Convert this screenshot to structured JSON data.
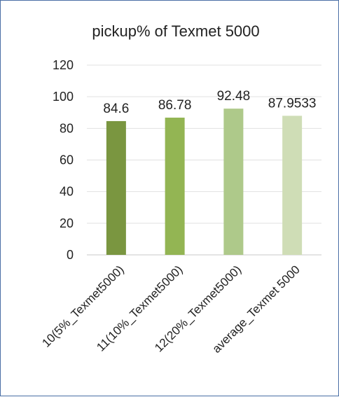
{
  "chart_data": {
    "type": "bar",
    "title": "pickup% of Texmet 5000",
    "categories": [
      "10(5%_Texmet5000)",
      "11(10%_Texmet5000)",
      "12(20%_Texmet5000)",
      "average_Texmet 5000"
    ],
    "values": [
      84.6,
      86.78,
      92.48,
      87.9533
    ],
    "data_labels": [
      "84.6",
      "86.78",
      "92.48",
      "87.9533"
    ],
    "bar_colors": [
      "#7a9640",
      "#93b553",
      "#aec98a",
      "#cfddb6"
    ],
    "ylim": [
      0,
      120
    ],
    "yticks": [
      0,
      20,
      40,
      60,
      80,
      100,
      120
    ],
    "xlabel": "",
    "ylabel": "",
    "grid": true,
    "legend": "none"
  }
}
